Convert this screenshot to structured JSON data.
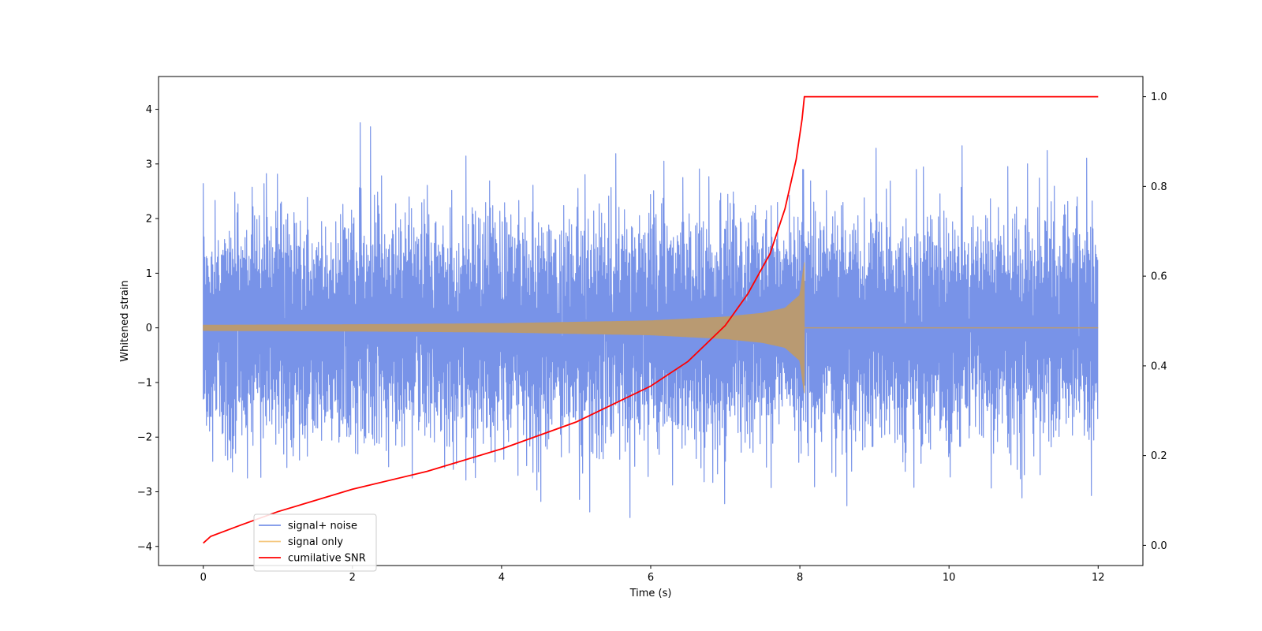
{
  "chart_data": {
    "type": "line",
    "title": "",
    "xlabel": "Time (s)",
    "ylabel": "Whitened strain",
    "xlim": [
      -0.6,
      12.6
    ],
    "ylim": [
      -4.35,
      4.6
    ],
    "y2lim": [
      -0.045,
      1.045
    ],
    "xticks": [
      0,
      2,
      4,
      6,
      8,
      10,
      12
    ],
    "yticks": [
      -4,
      -3,
      -2,
      -1,
      0,
      1,
      2,
      3,
      4
    ],
    "y2ticks": [
      0.0,
      0.2,
      0.4,
      0.6,
      0.8,
      1.0
    ],
    "y2tick_labels": [
      "0.0",
      "0.2",
      "0.4",
      "0.6",
      "0.8",
      "1.0"
    ],
    "grid": false,
    "legend_position": "bottom-left",
    "merger_time": 8.06,
    "series": [
      {
        "name": "signal+ noise",
        "color": "#7893e8",
        "axis": "left",
        "description": "white noise plus chirp",
        "x_range": [
          0,
          12
        ],
        "y_extent": [
          -3.9,
          4.15
        ]
      },
      {
        "name": "signal only",
        "color": "#f5c77e",
        "axis": "left",
        "description": "chirp with growing amplitude until merger",
        "envelope": [
          {
            "x": 0,
            "y": 0.05
          },
          {
            "x": 2,
            "y": 0.06
          },
          {
            "x": 4,
            "y": 0.08
          },
          {
            "x": 6,
            "y": 0.13
          },
          {
            "x": 7,
            "y": 0.2
          },
          {
            "x": 7.5,
            "y": 0.27
          },
          {
            "x": 7.8,
            "y": 0.36
          },
          {
            "x": 8.0,
            "y": 0.6
          },
          {
            "x": 8.06,
            "y": 1.2
          }
        ]
      },
      {
        "name": "cumilative SNR",
        "color": "#ff0000",
        "axis": "right",
        "points": [
          {
            "x": 0,
            "y": 0.005
          },
          {
            "x": 0.1,
            "y": 0.02
          },
          {
            "x": 0.5,
            "y": 0.045
          },
          {
            "x": 1,
            "y": 0.075
          },
          {
            "x": 2,
            "y": 0.125
          },
          {
            "x": 3,
            "y": 0.165
          },
          {
            "x": 4,
            "y": 0.215
          },
          {
            "x": 5,
            "y": 0.275
          },
          {
            "x": 6,
            "y": 0.355
          },
          {
            "x": 6.5,
            "y": 0.41
          },
          {
            "x": 7,
            "y": 0.49
          },
          {
            "x": 7.3,
            "y": 0.56
          },
          {
            "x": 7.6,
            "y": 0.65
          },
          {
            "x": 7.8,
            "y": 0.75
          },
          {
            "x": 7.95,
            "y": 0.86
          },
          {
            "x": 8.03,
            "y": 0.95
          },
          {
            "x": 8.06,
            "y": 1.0
          },
          {
            "x": 12,
            "y": 1.0
          }
        ]
      }
    ]
  }
}
